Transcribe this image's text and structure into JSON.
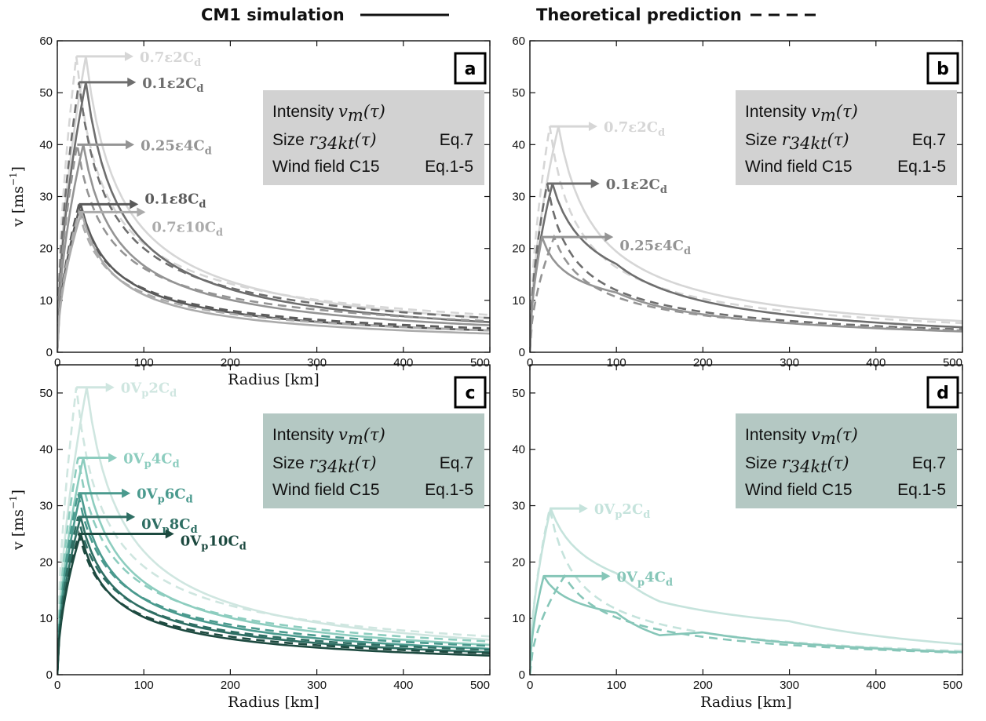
{
  "header": {
    "left": "CM1 simulation",
    "right": "Theoretical prediction"
  },
  "chart_data": [
    {
      "panel": "a",
      "type": "line",
      "xlabel": "Radius [km]",
      "ylabel": "v  [ms-1]",
      "xlim": [
        0,
        500
      ],
      "ylim": [
        0,
        60
      ],
      "xticks": [
        0,
        100,
        200,
        300,
        400,
        500
      ],
      "yticks": [
        0,
        10,
        20,
        30,
        40,
        50,
        60
      ],
      "info_box": {
        "row1_label": "Intensity",
        "row1_math": "vm(τ)",
        "row2_label": "Size",
        "row2_math": "r34kt(τ)",
        "row2_eq": "Eq.7",
        "row3_label": "Wind field C15",
        "row3_eq": "Eq.1-5",
        "color": "#d2d2d2"
      },
      "series": [
        {
          "name": "0.7ε2Cd",
          "main": "0.7ε2C",
          "sub": "d",
          "color": "#d6d6d6",
          "sim_peak": [
            33,
            57
          ],
          "sim_tail": [
            [
              500,
              6.6
            ]
          ],
          "thy_peak": [
            22,
            57
          ],
          "thy_tail": [
            [
              500,
              7.2
            ]
          ]
        },
        {
          "name": "0.1ε2Cd",
          "main": "0.1ε2C",
          "sub": "d",
          "color": "#6e6e6e",
          "sim_peak": [
            33,
            52
          ],
          "sim_tail": [
            [
              500,
              5.8
            ]
          ],
          "thy_peak": [
            25,
            52
          ],
          "thy_tail": [
            [
              500,
              6.6
            ]
          ]
        },
        {
          "name": "0.25ε4Cd",
          "main": "0.25ε4C",
          "sub": "d",
          "color": "#949494",
          "sim_peak": [
            30,
            40
          ],
          "sim_tail": [
            [
              500,
              5.2
            ]
          ],
          "thy_peak": [
            23,
            40
          ],
          "thy_tail": [
            [
              500,
              6.0
            ]
          ]
        },
        {
          "name": "0.1ε8Cd",
          "main": "0.1ε8C",
          "sub": "d",
          "color": "#5a5a5a",
          "sim_peak": [
            27,
            28.5
          ],
          "sim_tail": [
            [
              500,
              4.2
            ]
          ],
          "thy_peak": [
            25,
            28.5
          ],
          "thy_tail": [
            [
              500,
              4.6
            ]
          ]
        },
        {
          "name": "0.7ε10Cd",
          "main": "0.7ε10C",
          "sub": "d",
          "color": "#ababab",
          "sim_peak": [
            28,
            27
          ],
          "sim_tail": [
            [
              500,
              3.6
            ]
          ],
          "thy_peak": [
            25,
            27
          ],
          "thy_tail": [
            [
              500,
              4.2
            ]
          ]
        }
      ]
    },
    {
      "panel": "b",
      "type": "line",
      "xlabel": "",
      "ylabel": "",
      "xlim": [
        0,
        500
      ],
      "ylim": [
        0,
        60
      ],
      "xticks": [
        0,
        100,
        200,
        300,
        400,
        500
      ],
      "yticks": [
        0,
        10,
        20,
        30,
        40,
        50,
        60
      ],
      "info_box": {
        "row1_label": "Intensity",
        "row1_math": "vm(τ)",
        "row2_label": "Size",
        "row2_math": "r34kt(τ)",
        "row2_eq": "Eq.7",
        "row3_label": "Wind field C15",
        "row3_eq": "Eq.1-5",
        "color": "#d2d2d2"
      },
      "series": [
        {
          "name": "0.7ε2Cd",
          "main": "0.7ε2C",
          "sub": "d",
          "color": "#d6d6d6",
          "sim_peak": [
            33,
            43.5
          ],
          "sim_tail": [
            [
              500,
              6.0
            ]
          ],
          "thy_peak": [
            23,
            43.5
          ],
          "thy_tail": [
            [
              500,
              5.6
            ]
          ]
        },
        {
          "name": "0.1ε2Cd",
          "main": "0.1ε2C",
          "sub": "d",
          "color": "#6e6e6e",
          "sim_peak": [
            26,
            32.5
          ],
          "sim_tail": [
            [
              100,
              17
            ],
            [
              500,
              4.8
            ]
          ],
          "thy_peak": [
            20,
            32.5
          ],
          "thy_tail": [
            [
              500,
              4.4
            ]
          ]
        },
        {
          "name": "0.25ε4Cd",
          "main": "0.25ε4C",
          "sub": "d",
          "color": "#949494",
          "sim_peak": [
            14,
            22.2
          ],
          "sim_tail": [
            [
              100,
              11.5
            ],
            [
              500,
              4.0
            ]
          ],
          "thy_peak": [
            28,
            22.2
          ],
          "thy_tail": [
            [
              500,
              4.2
            ]
          ]
        }
      ]
    },
    {
      "panel": "c",
      "type": "line",
      "xlabel": "Radius [km]",
      "ylabel": "v  [ms-1]",
      "xlim": [
        0,
        500
      ],
      "ylim": [
        0,
        55
      ],
      "xticks": [
        0,
        100,
        200,
        300,
        400,
        500
      ],
      "yticks": [
        0,
        10,
        20,
        30,
        40,
        50
      ],
      "info_box": {
        "row1_label": "Intensity",
        "row1_math": "vm(τ)",
        "row2_label": "Size",
        "row2_math": "r34kt(τ)",
        "row2_eq": "Eq.7",
        "row3_label": "Wind field C15",
        "row3_eq": "Eq.1-5",
        "color": "#b4c8c3"
      },
      "series": [
        {
          "name": "0Vp2Cd",
          "main": "0V",
          "sub": "p",
          "main2": "2C",
          "sub2": "d",
          "color": "#cfe6e0",
          "sim_peak": [
            34,
            51
          ],
          "sim_tail": [
            [
              500,
              6.2
            ]
          ],
          "thy_peak": [
            22,
            51
          ],
          "thy_tail": [
            [
              500,
              6.8
            ]
          ]
        },
        {
          "name": "0Vp4Cd",
          "main": "0V",
          "sub": "p",
          "main2": "4C",
          "sub2": "d",
          "color": "#8dcdbf",
          "sim_peak": [
            30,
            38.5
          ],
          "sim_tail": [
            [
              500,
              5.3
            ]
          ],
          "thy_peak": [
            24,
            38.5
          ],
          "thy_tail": [
            [
              500,
              5.9
            ]
          ]
        },
        {
          "name": "0Vp6Cd",
          "main": "0V",
          "sub": "p",
          "main2": "6C",
          "sub2": "d",
          "color": "#4a9a8e",
          "sim_peak": [
            27,
            32.2
          ],
          "sim_tail": [
            [
              500,
              4.6
            ]
          ],
          "thy_peak": [
            24,
            32.2
          ],
          "thy_tail": [
            [
              500,
              5.1
            ]
          ]
        },
        {
          "name": "0Vp8Cd",
          "main": "0V",
          "sub": "p",
          "main2": "8C",
          "sub2": "d",
          "color": "#2e6e63",
          "sim_peak": [
            27,
            28
          ],
          "sim_tail": [
            [
              500,
              4.0
            ]
          ],
          "thy_peak": [
            24,
            28
          ],
          "thy_tail": [
            [
              500,
              4.4
            ]
          ]
        },
        {
          "name": "0Vp10Cd",
          "main": "0V",
          "sub": "p",
          "main2": "10C",
          "sub2": "d",
          "color": "#1d4a40",
          "sim_peak": [
            27,
            25
          ],
          "sim_tail": [
            [
              500,
              3.4
            ]
          ],
          "thy_peak": [
            25,
            25
          ],
          "thy_tail": [
            [
              500,
              3.8
            ]
          ]
        }
      ]
    },
    {
      "panel": "d",
      "type": "line",
      "xlabel": "Radius [km]",
      "ylabel": "",
      "xlim": [
        0,
        500
      ],
      "ylim": [
        0,
        55
      ],
      "xticks": [
        0,
        100,
        200,
        300,
        400,
        500
      ],
      "yticks": [
        0,
        10,
        20,
        30,
        40,
        50
      ],
      "info_box": {
        "row1_label": "Intensity",
        "row1_math": "vm(τ)",
        "row2_label": "Size",
        "row2_math": "r34kt(τ)",
        "row2_eq": "Eq.7",
        "row3_label": "Wind field C15",
        "row3_eq": "Eq.1-5",
        "color": "#b4c8c3"
      },
      "series": [
        {
          "name": "0Vp2Cd",
          "main": "0V",
          "sub": "p",
          "main2": "2C",
          "sub2": "d",
          "color": "#c5e3dc",
          "sim_peak": [
            24,
            29.5
          ],
          "sim_tail": [
            [
              100,
              18
            ],
            [
              150,
              13
            ],
            [
              300,
              9.5
            ],
            [
              500,
              5.4
            ]
          ],
          "thy_peak": [
            23,
            29.5
          ],
          "thy_tail": [
            [
              500,
              4.2
            ]
          ]
        },
        {
          "name": "0Vp4Cd",
          "main": "0V",
          "sub": "p",
          "main2": "4C",
          "sub2": "d",
          "color": "#86c6b8",
          "sim_peak": [
            16,
            17.5
          ],
          "sim_tail": [
            [
              100,
              11
            ],
            [
              150,
              7
            ],
            [
              200,
              7.5
            ],
            [
              500,
              4.0
            ]
          ],
          "thy_peak": [
            40,
            17.5
          ],
          "thy_tail": [
            [
              500,
              3.9
            ]
          ]
        }
      ]
    }
  ]
}
